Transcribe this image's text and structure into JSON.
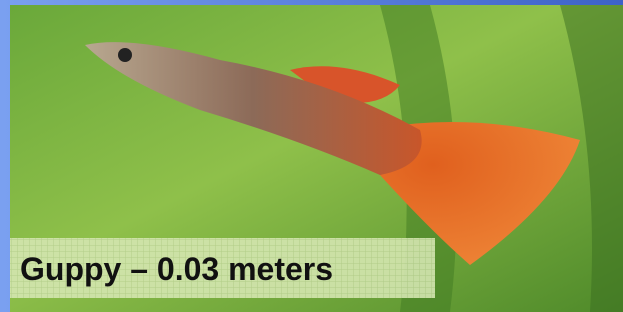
{
  "caption": "Guppy – 0.03 meters"
}
